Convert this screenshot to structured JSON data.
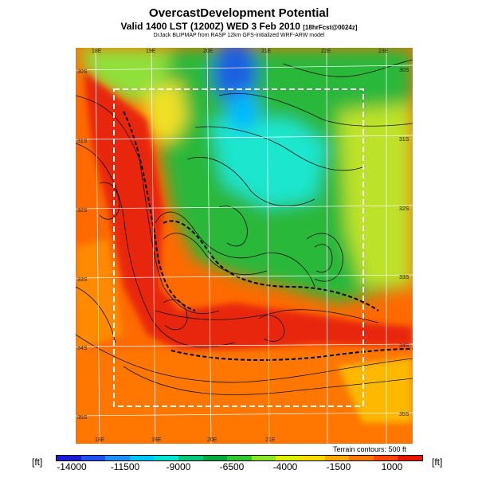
{
  "title": "OvercastDevelopment Potential",
  "subtitle": "Valid 1400 LST (1200Z) WED 3 Feb 2010",
  "subtitle_tag": "[18hrFcst@0024z]",
  "credit": "DrJack BLIPMAP from RASP 12km GFS-initialized WRF-ARW model",
  "terrain_note": "Terrain contours: 500 ft",
  "unit_left": "[ft]",
  "unit_right": "[ft]",
  "lon_labels_top": [
    "18E",
    "19E",
    "20E",
    "21E",
    "22E",
    "23E"
  ],
  "lon_labels_bottom": [
    "18E",
    "19E",
    "20E",
    "21E"
  ],
  "lat_labels_left": [
    "30S",
    "31S",
    "32S",
    "33S",
    "34S",
    "35S"
  ],
  "lat_labels_right": [
    "30S",
    "31S",
    "32S",
    "33S",
    "34S",
    "35S"
  ],
  "colorbar": {
    "ticks": [
      "-14000",
      "-11500",
      "-9000",
      "-6500",
      "-4000",
      "-1500",
      "1000"
    ],
    "colors": [
      "#1a1ad8",
      "#2050f0",
      "#1e90ff",
      "#00c8ff",
      "#00e6d2",
      "#00c878",
      "#00aa3c",
      "#32c832",
      "#8ce628",
      "#dcf000",
      "#ffdc00",
      "#ffaa00",
      "#ff7800",
      "#ff4600",
      "#e61400"
    ]
  }
}
